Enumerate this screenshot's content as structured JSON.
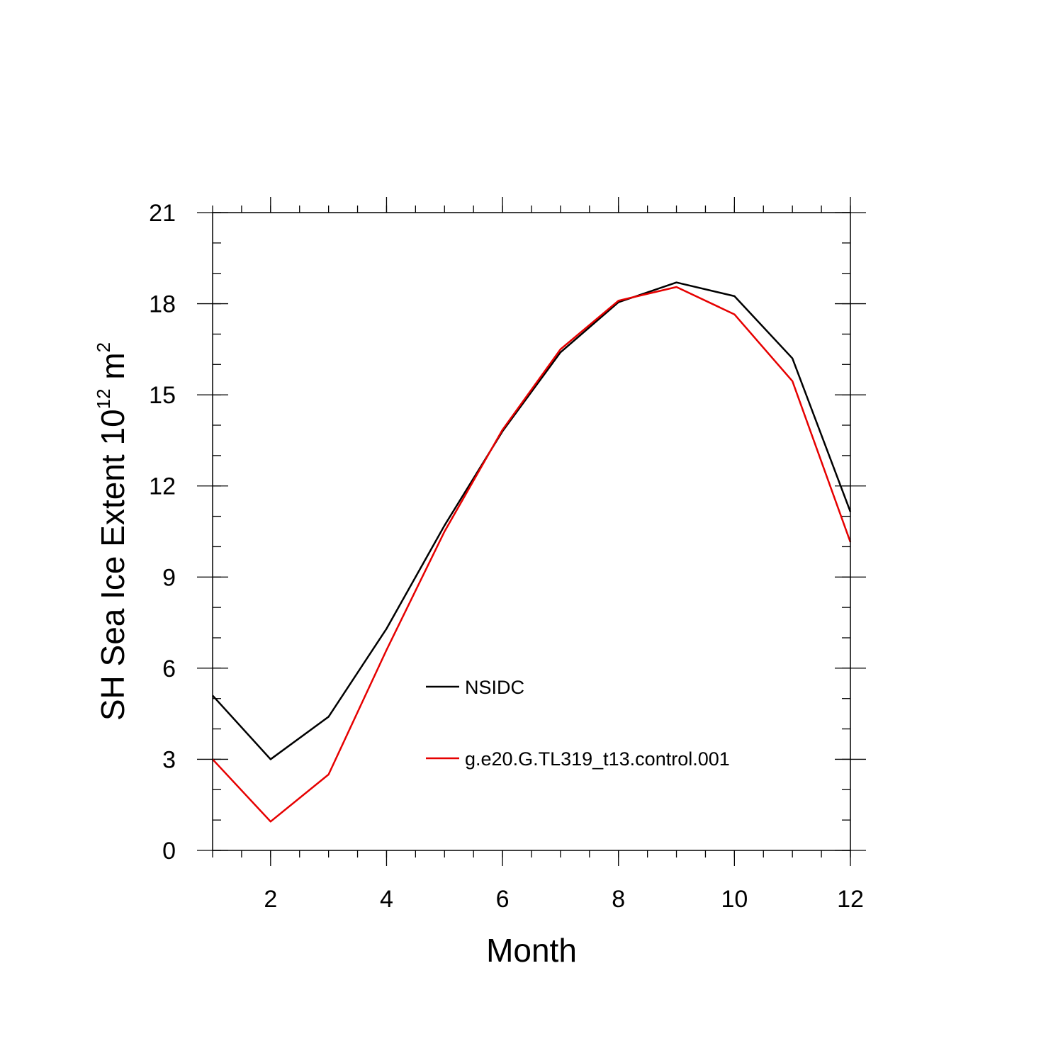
{
  "chart_data": {
    "type": "line",
    "title": "",
    "xlabel": "Month",
    "ylabel": {
      "main": "SH Sea Ice Extent 10",
      "exp": "12",
      "unit": " m",
      "unit_exp": "2"
    },
    "xlim": [
      1,
      12
    ],
    "ylim": [
      0,
      21
    ],
    "x_ticks": [
      2,
      4,
      6,
      8,
      10,
      12
    ],
    "x_tick_labels": [
      "2",
      "4",
      "6",
      "8",
      "10",
      "12"
    ],
    "y_ticks": [
      0,
      3,
      6,
      9,
      12,
      15,
      18,
      21
    ],
    "y_tick_labels": [
      "0",
      "3",
      "6",
      "9",
      "12",
      "15",
      "18",
      "21"
    ],
    "x_minor_step": 0.5,
    "y_minor_step": 1,
    "grid": false,
    "legend_position": "inside-center",
    "x": [
      1,
      2,
      3,
      4,
      5,
      6,
      7,
      8,
      9,
      10,
      11,
      12
    ],
    "series": [
      {
        "name": "NSIDC",
        "color": "#000000",
        "values": [
          5.1,
          3.0,
          4.4,
          7.3,
          10.7,
          13.8,
          16.4,
          18.05,
          18.7,
          18.25,
          16.2,
          11.15
        ]
      },
      {
        "name": "g.e20.G.TL319_t13.control.001",
        "color": "#e60000",
        "values": [
          3.0,
          0.95,
          2.5,
          6.6,
          10.5,
          13.85,
          16.5,
          18.1,
          18.55,
          17.65,
          15.45,
          10.15
        ]
      }
    ]
  }
}
